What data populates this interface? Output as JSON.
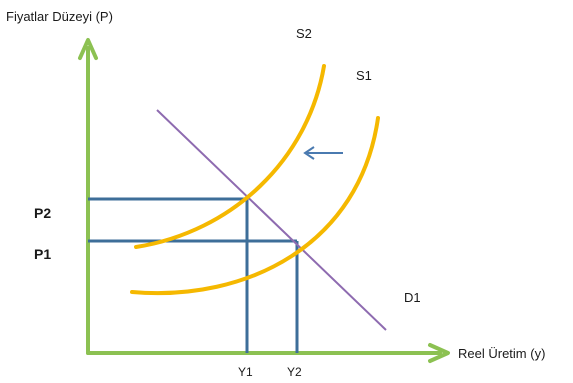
{
  "labels": {
    "y_axis": "Fiyatlar Düzeyi (P)",
    "x_axis": "Reel Üretim (y)",
    "supply_new": "S2",
    "supply_old": "S1",
    "demand": "D1",
    "price_high": "P2",
    "price_low": "P1",
    "output_low": "Y1",
    "output_high": "Y2"
  },
  "colors": {
    "axis": "#8cc152",
    "supply": "#f5b800",
    "demand": "#8e6bb0",
    "guide": "#3d6e99",
    "shift_arrow": "#4a7ab0",
    "text": "#1a1a1a"
  }
}
